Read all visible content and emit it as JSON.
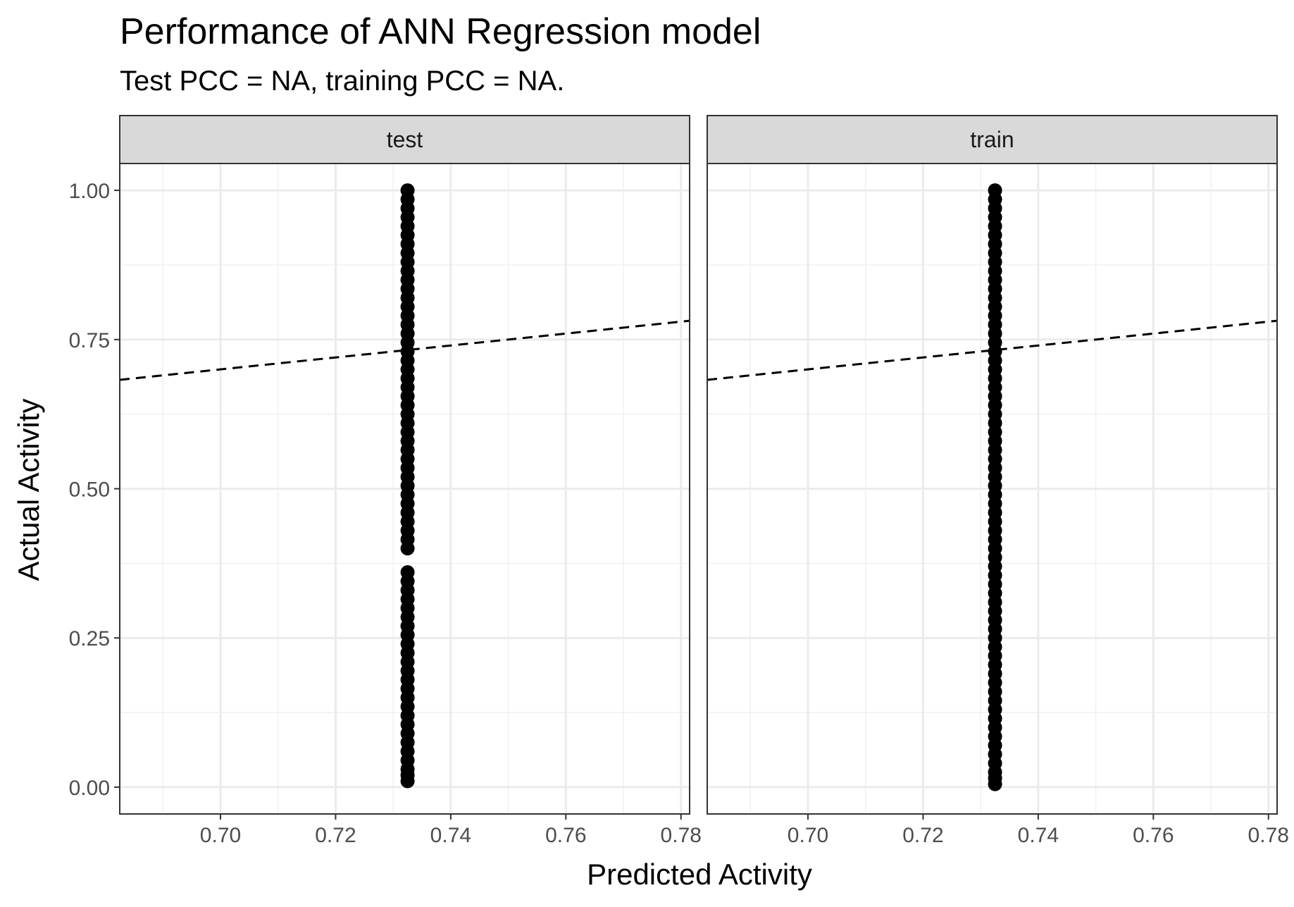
{
  "chart_data": {
    "type": "scatter",
    "title": "Performance of ANN Regression model",
    "subtitle": "Test PCC = NA, training PCC = NA.",
    "xlabel": "Predicted Activity",
    "ylabel": "Actual Activity",
    "xlim": [
      0.6825,
      0.7815
    ],
    "ylim": [
      -0.045,
      1.045
    ],
    "x_ticks": [
      0.7,
      0.72,
      0.74,
      0.76,
      0.78
    ],
    "x_tick_labels": [
      "0.70",
      "0.72",
      "0.74",
      "0.76",
      "0.78"
    ],
    "y_ticks": [
      0.0,
      0.25,
      0.5,
      0.75,
      1.0
    ],
    "y_tick_labels": [
      "0.00",
      "0.25",
      "0.50",
      "0.75",
      "1.00"
    ],
    "grid": true,
    "reference_line": {
      "type": "identity",
      "style": "dashed",
      "slope": 1,
      "intercept": 0
    },
    "panels": [
      {
        "facet": "test",
        "x_constant": 0.7325,
        "y_values": [
          0.01,
          0.02,
          0.03,
          0.045,
          0.06,
          0.075,
          0.09,
          0.105,
          0.12,
          0.135,
          0.15,
          0.165,
          0.18,
          0.195,
          0.21,
          0.225,
          0.24,
          0.255,
          0.27,
          0.285,
          0.3,
          0.315,
          0.33,
          0.345,
          0.36,
          0.4,
          0.415,
          0.43,
          0.445,
          0.46,
          0.475,
          0.49,
          0.505,
          0.52,
          0.535,
          0.55,
          0.565,
          0.58,
          0.595,
          0.61,
          0.625,
          0.64,
          0.655,
          0.67,
          0.685,
          0.7,
          0.715,
          0.73,
          0.745,
          0.76,
          0.775,
          0.79,
          0.805,
          0.82,
          0.835,
          0.85,
          0.865,
          0.88,
          0.895,
          0.91,
          0.925,
          0.94,
          0.955,
          0.97,
          0.985,
          1.0
        ]
      },
      {
        "facet": "train",
        "x_constant": 0.7325,
        "y_values": [
          0.005,
          0.015,
          0.025,
          0.04,
          0.055,
          0.07,
          0.085,
          0.1,
          0.115,
          0.13,
          0.145,
          0.16,
          0.175,
          0.19,
          0.205,
          0.22,
          0.235,
          0.25,
          0.265,
          0.28,
          0.295,
          0.31,
          0.325,
          0.34,
          0.355,
          0.37,
          0.385,
          0.4,
          0.415,
          0.43,
          0.445,
          0.46,
          0.475,
          0.49,
          0.505,
          0.52,
          0.535,
          0.55,
          0.565,
          0.58,
          0.595,
          0.61,
          0.625,
          0.64,
          0.655,
          0.67,
          0.685,
          0.7,
          0.715,
          0.73,
          0.745,
          0.76,
          0.775,
          0.79,
          0.805,
          0.82,
          0.835,
          0.85,
          0.865,
          0.88,
          0.895,
          0.91,
          0.925,
          0.94,
          0.955,
          0.97,
          0.985,
          1.0
        ]
      }
    ]
  }
}
